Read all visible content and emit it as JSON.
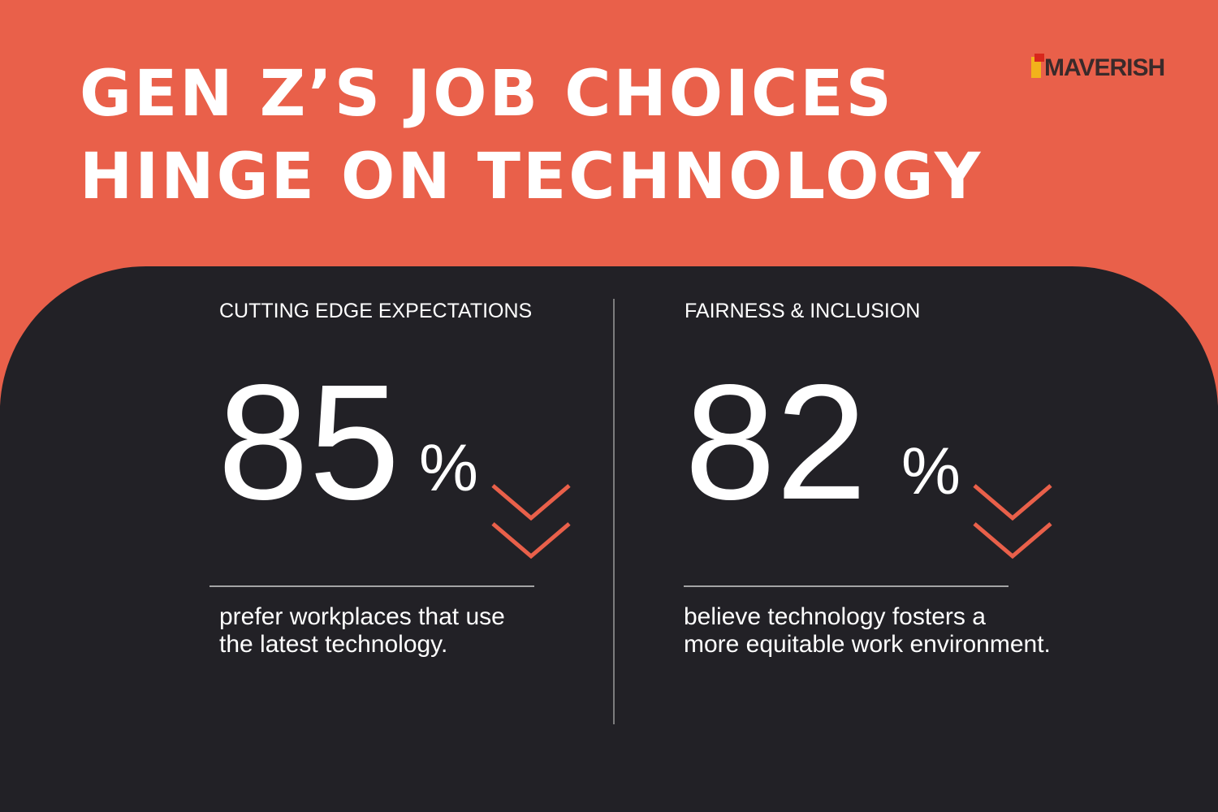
{
  "header": {
    "title_lines": [
      "GEN Z’S JOB CHOICES",
      "HINGE ON TECHNOLOGY"
    ],
    "logo": "MAVERISH"
  },
  "stats": [
    {
      "heading": "CUTTING EDGE EXPECTATIONS",
      "value": 85,
      "unit": "%",
      "description_lines": [
        "prefer workplaces that use",
        "the latest technology."
      ]
    },
    {
      "heading": "FAIRNESS & INCLUSION",
      "value": 82,
      "unit": "%",
      "description_lines": [
        "believe technology fosters a",
        "more equitable work environment."
      ]
    }
  ]
}
